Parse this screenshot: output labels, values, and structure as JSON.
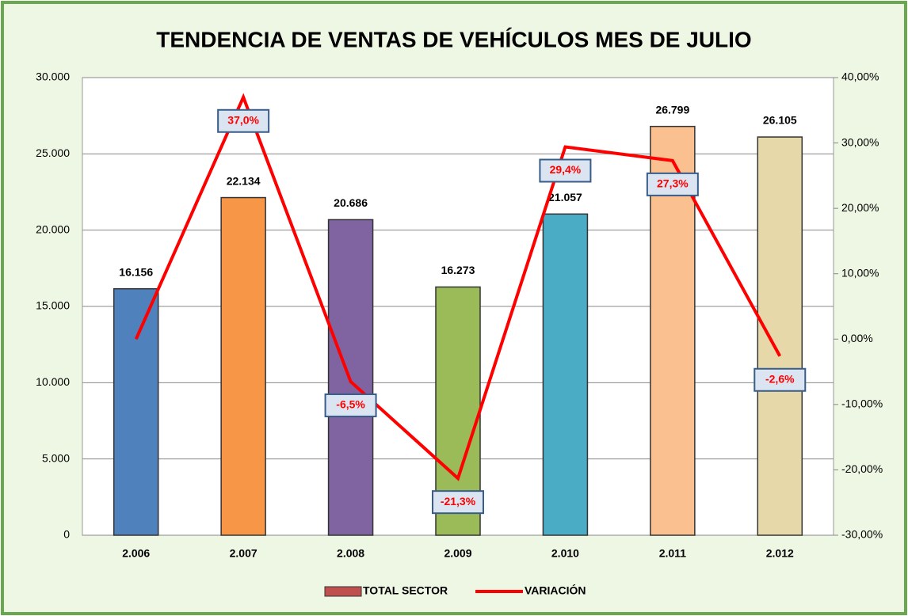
{
  "chart_data": {
    "type": "bar_line",
    "title": "TENDENCIA DE VENTAS DE VEHÍCULOS MES DE JULIO",
    "categories": [
      "2.006",
      "2.007",
      "2.008",
      "2.009",
      "2.010",
      "2.011",
      "2.012"
    ],
    "series": [
      {
        "name": "TOTAL SECTOR",
        "type": "bar",
        "color": "#c0504d",
        "colors": [
          "#4f81bd",
          "#f79646",
          "#8064a2",
          "#9bbb59",
          "#4bacc6",
          "#fac090",
          "#e6d8a8"
        ],
        "values": [
          16156,
          22134,
          20686,
          16273,
          21057,
          26799,
          26105
        ],
        "value_labels": [
          "16.156",
          "22.134",
          "20.686",
          "16.273",
          "21.057",
          "26.799",
          "26.105"
        ]
      },
      {
        "name": "VARIACIÓN",
        "type": "line",
        "axis": "y2",
        "color": "#ff0000",
        "values": [
          0,
          37.0,
          -6.5,
          -21.3,
          29.4,
          27.3,
          -2.6
        ],
        "value_labels": [
          null,
          "37,0%",
          "-6,5%",
          "-21,3%",
          "29,4%",
          "27,3%",
          "-2,6%"
        ]
      }
    ],
    "ylim": [
      0,
      30000
    ],
    "yticks": [
      0,
      {
        "value": 5000,
        "label": "5.000"
      },
      {
        "value": 10000,
        "label": "10.000"
      },
      {
        "value": 15000,
        "label": "15.000"
      },
      {
        "value": 20000,
        "label": "20.000"
      },
      {
        "value": 25000,
        "label": "25.000"
      },
      {
        "value": 30000,
        "label": "30.000"
      }
    ],
    "y2lim": [
      -30,
      40
    ],
    "y2ticks": [
      {
        "value": -30,
        "label": "-30,00%"
      },
      {
        "value": -20,
        "label": "-20,00%"
      },
      {
        "value": -10,
        "label": "-10,00%"
      },
      {
        "value": 0,
        "label": "0,00%"
      },
      {
        "value": 10,
        "label": "10,00%"
      },
      {
        "value": 20,
        "label": "20,00%"
      },
      {
        "value": 30,
        "label": "30,00%"
      },
      {
        "value": 40,
        "label": "40,00%"
      }
    ],
    "grid": true,
    "legend": "bottom"
  }
}
